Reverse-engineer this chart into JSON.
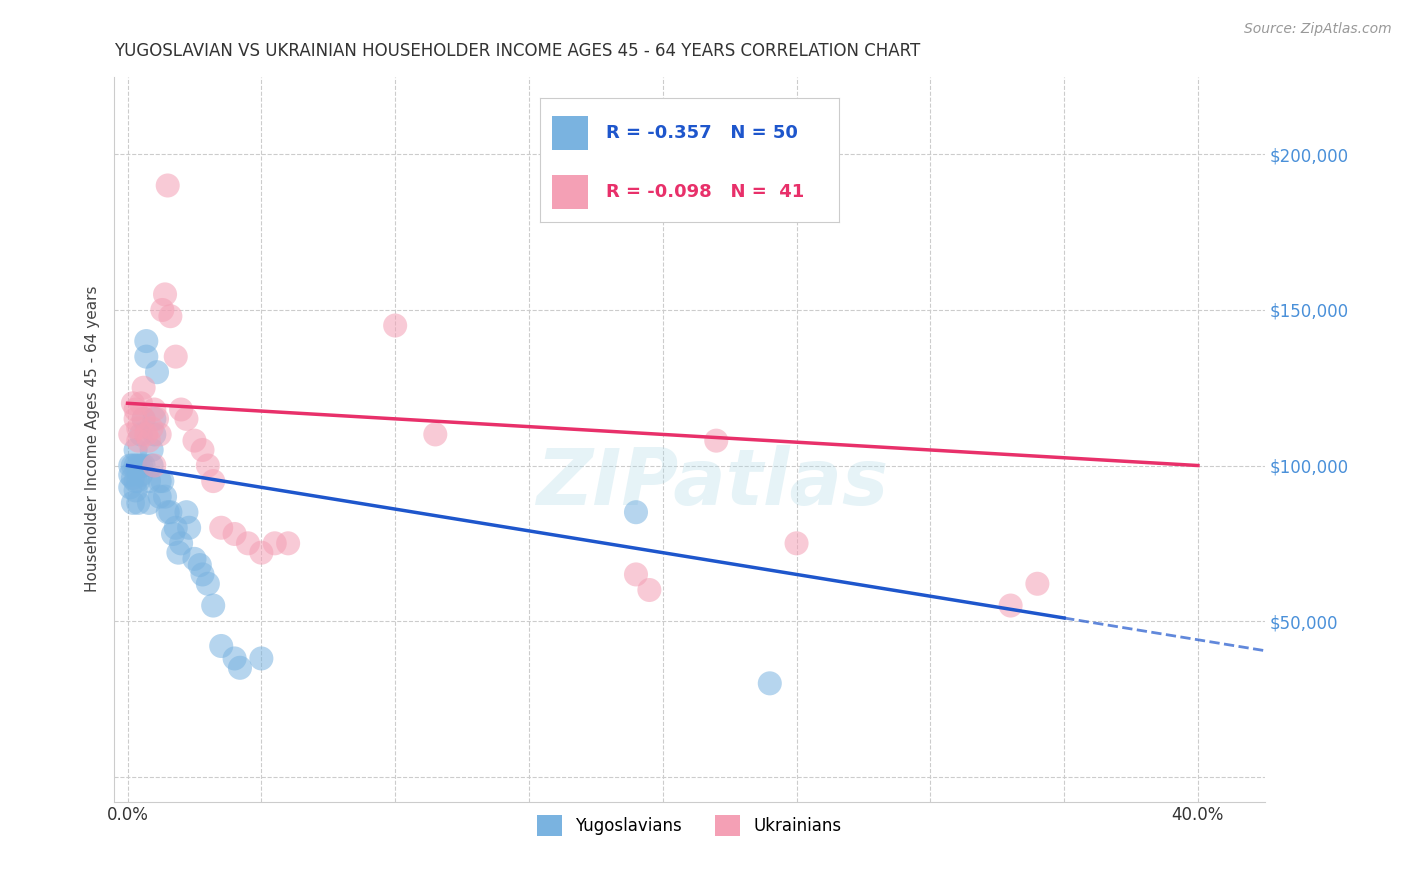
{
  "title": "YUGOSLAVIAN VS UKRAINIAN HOUSEHOLDER INCOME AGES 45 - 64 YEARS CORRELATION CHART",
  "source": "Source: ZipAtlas.com",
  "ylabel": "Householder Income Ages 45 - 64 years",
  "x_ticks": [
    0.0,
    0.05,
    0.1,
    0.15,
    0.2,
    0.25,
    0.3,
    0.35,
    0.4
  ],
  "x_tick_labels": [
    "0.0%",
    "",
    "",
    "",
    "",
    "",
    "",
    "",
    "40.0%"
  ],
  "y_ticks": [
    0,
    50000,
    100000,
    150000,
    200000
  ],
  "y_tick_labels": [
    "",
    "$50,000",
    "$100,000",
    "$150,000",
    "$200,000"
  ],
  "xlim": [
    -0.005,
    0.425
  ],
  "ylim": [
    -8000,
    225000
  ],
  "background_color": "#ffffff",
  "grid_color": "#cccccc",
  "watermark": "ZIPatlas",
  "blue_R": "-0.357",
  "blue_N": "50",
  "pink_R": "-0.098",
  "pink_N": "41",
  "yugoslavian_color": "#7ab3e0",
  "ukrainian_color": "#f4a0b5",
  "trendline_blue": "#1e56cc",
  "trendline_pink": "#e8306a",
  "yugoslavian_x": [
    0.001,
    0.001,
    0.001,
    0.002,
    0.002,
    0.002,
    0.003,
    0.003,
    0.003,
    0.003,
    0.004,
    0.004,
    0.004,
    0.005,
    0.005,
    0.005,
    0.006,
    0.006,
    0.007,
    0.007,
    0.008,
    0.008,
    0.009,
    0.009,
    0.01,
    0.01,
    0.011,
    0.012,
    0.012,
    0.013,
    0.014,
    0.015,
    0.016,
    0.017,
    0.018,
    0.019,
    0.02,
    0.022,
    0.023,
    0.025,
    0.027,
    0.028,
    0.03,
    0.032,
    0.035,
    0.04,
    0.042,
    0.05,
    0.19,
    0.24
  ],
  "yugoslavian_y": [
    97000,
    100000,
    93000,
    100000,
    96000,
    88000,
    95000,
    100000,
    105000,
    92000,
    100000,
    95000,
    88000,
    110000,
    100000,
    97000,
    115000,
    100000,
    140000,
    135000,
    95000,
    88000,
    105000,
    100000,
    115000,
    110000,
    130000,
    95000,
    90000,
    95000,
    90000,
    85000,
    85000,
    78000,
    80000,
    72000,
    75000,
    85000,
    80000,
    70000,
    68000,
    65000,
    62000,
    55000,
    42000,
    38000,
    35000,
    38000,
    85000,
    30000
  ],
  "ukrainian_x": [
    0.001,
    0.002,
    0.003,
    0.003,
    0.004,
    0.004,
    0.005,
    0.006,
    0.006,
    0.007,
    0.008,
    0.009,
    0.01,
    0.01,
    0.011,
    0.012,
    0.013,
    0.014,
    0.015,
    0.016,
    0.018,
    0.02,
    0.022,
    0.025,
    0.028,
    0.03,
    0.032,
    0.035,
    0.04,
    0.045,
    0.05,
    0.055,
    0.06,
    0.1,
    0.115,
    0.19,
    0.195,
    0.22,
    0.25,
    0.33,
    0.34
  ],
  "ukrainian_y": [
    110000,
    120000,
    118000,
    115000,
    108000,
    112000,
    120000,
    125000,
    115000,
    110000,
    108000,
    112000,
    118000,
    100000,
    115000,
    110000,
    150000,
    155000,
    190000,
    148000,
    135000,
    118000,
    115000,
    108000,
    105000,
    100000,
    95000,
    80000,
    78000,
    75000,
    72000,
    75000,
    75000,
    145000,
    110000,
    65000,
    60000,
    108000,
    75000,
    55000,
    62000
  ],
  "yug_trend_x0": 0.0,
  "yug_trend_x1": 0.35,
  "yug_trend_y0": 100000,
  "yug_trend_y1": 51000,
  "ukr_trend_x0": 0.0,
  "ukr_trend_x1": 0.4,
  "ukr_trend_y0": 120000,
  "ukr_trend_y1": 100000
}
